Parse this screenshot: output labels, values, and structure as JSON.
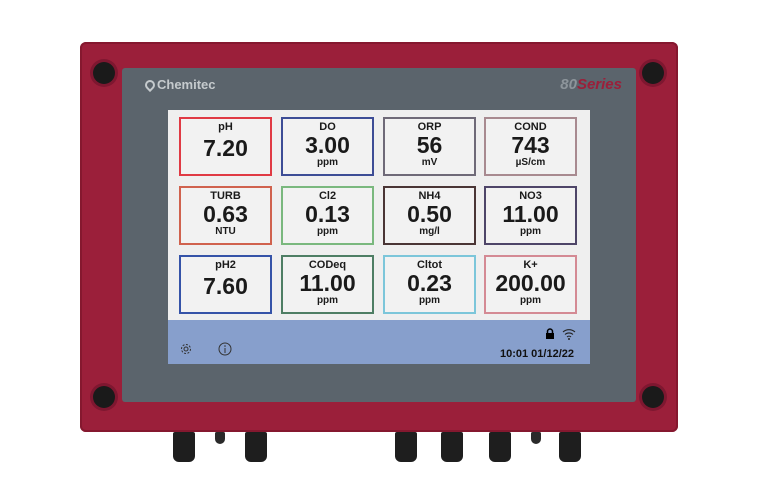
{
  "device": {
    "brand": "Chemitec",
    "series_number": "80",
    "series_word": "Series"
  },
  "tiles": [
    {
      "name": "pH",
      "value": "7.20",
      "unit": "",
      "color": "#e03a44"
    },
    {
      "name": "DO",
      "value": "3.00",
      "unit": "ppm",
      "color": "#3d4d96"
    },
    {
      "name": "ORP",
      "value": "56",
      "unit": "mV",
      "color": "#6f6a78"
    },
    {
      "name": "COND",
      "value": "743",
      "unit": "µS/cm",
      "color": "#a88a90"
    },
    {
      "name": "TURB",
      "value": "0.63",
      "unit": "NTU",
      "color": "#d0624e"
    },
    {
      "name": "Cl2",
      "value": "0.13",
      "unit": "ppm",
      "color": "#7ab87e"
    },
    {
      "name": "NH4",
      "value": "0.50",
      "unit": "mg/l",
      "color": "#4a3535"
    },
    {
      "name": "NO3",
      "value": "11.00",
      "unit": "ppm",
      "color": "#4e4568"
    },
    {
      "name": "pH2",
      "value": "7.60",
      "unit": "",
      "color": "#3553a8"
    },
    {
      "name": "CODeq",
      "value": "11.00",
      "unit": "ppm",
      "color": "#4e7e64"
    },
    {
      "name": "Cltot",
      "value": "0.23",
      "unit": "ppm",
      "color": "#7cc6da"
    },
    {
      "name": "K+",
      "value": "200.00",
      "unit": "ppm",
      "color": "#d48a94"
    }
  ],
  "status": {
    "datetime": "10:01 01/12/22",
    "icons": [
      "settings-icon",
      "info-icon",
      "lock-icon",
      "wifi-icon"
    ]
  }
}
